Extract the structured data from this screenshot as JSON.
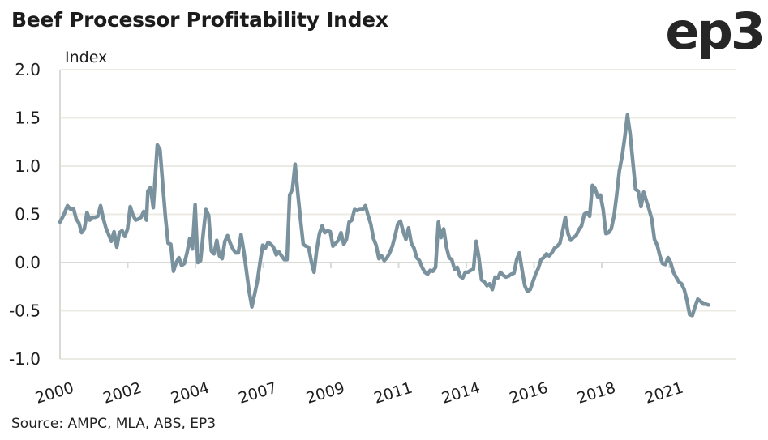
{
  "header": {
    "title": "Beef Processor Profitability Index",
    "logo": "ep3"
  },
  "footer": {
    "source": "Source: AMPC, MLA, ABS, EP3"
  },
  "colors": {
    "line": "#7a919e",
    "grid": "#ecebe3",
    "axis": "#d9d9d6"
  },
  "chart_data": {
    "type": "line",
    "title": "Beef Processor Profitability Index",
    "ylabel": "Index",
    "xlabel": "",
    "ylim": [
      -1.0,
      2.0
    ],
    "yticks": [
      "2.0",
      "1.5",
      "1.0",
      "0.5",
      "0.0",
      "-0.5",
      "-1.0"
    ],
    "ytick_values": [
      2.0,
      1.5,
      1.0,
      0.5,
      0.0,
      -0.5,
      -1.0
    ],
    "xtick_labels": [
      "2000",
      "2002",
      "2004",
      "2007",
      "2009",
      "2011",
      "2014",
      "2016",
      "2018",
      "2021"
    ],
    "grid": "horizontal",
    "legend": "none",
    "series": [
      {
        "name": "Beef Processor Profitability Index",
        "x_fraction": [
          0.0,
          0.006,
          0.011,
          0.016,
          0.02,
          0.024,
          0.028,
          0.032,
          0.036,
          0.04,
          0.044,
          0.048,
          0.052,
          0.056,
          0.06,
          0.064,
          0.068,
          0.072,
          0.076,
          0.08,
          0.084,
          0.088,
          0.092,
          0.096,
          0.1,
          0.104,
          0.108,
          0.112,
          0.116,
          0.12,
          0.124,
          0.128,
          0.13,
          0.134,
          0.138,
          0.14,
          0.144,
          0.148,
          0.152,
          0.156,
          0.16,
          0.164,
          0.168,
          0.172,
          0.176,
          0.18,
          0.184,
          0.188,
          0.192,
          0.196,
          0.2,
          0.204,
          0.208,
          0.212,
          0.216,
          0.22,
          0.224,
          0.228,
          0.232,
          0.236,
          0.24,
          0.244,
          0.248,
          0.252,
          0.256,
          0.26,
          0.264,
          0.268,
          0.272,
          0.276,
          0.28,
          0.284,
          0.288,
          0.292,
          0.296,
          0.3,
          0.304,
          0.308,
          0.312,
          0.316,
          0.32,
          0.324,
          0.328,
          0.332,
          0.336,
          0.34,
          0.344,
          0.348,
          0.352,
          0.356,
          0.36,
          0.364,
          0.368,
          0.372,
          0.376,
          0.38,
          0.384,
          0.388,
          0.392,
          0.396,
          0.4,
          0.404,
          0.408,
          0.412,
          0.416,
          0.42,
          0.424,
          0.428,
          0.432,
          0.436,
          0.44,
          0.444,
          0.448,
          0.452,
          0.456,
          0.46,
          0.464,
          0.468,
          0.472,
          0.476,
          0.48,
          0.484,
          0.488,
          0.492,
          0.496,
          0.5,
          0.504,
          0.508,
          0.512,
          0.516,
          0.52,
          0.524,
          0.528,
          0.532,
          0.536,
          0.54,
          0.544,
          0.548,
          0.552,
          0.556,
          0.56,
          0.564,
          0.568,
          0.572,
          0.576,
          0.58,
          0.584,
          0.588,
          0.592,
          0.596,
          0.6,
          0.604,
          0.608,
          0.612,
          0.616,
          0.62,
          0.624,
          0.628,
          0.632,
          0.636,
          0.64,
          0.644,
          0.648,
          0.652,
          0.656,
          0.66,
          0.664,
          0.668,
          0.672,
          0.676,
          0.68,
          0.684,
          0.688,
          0.692,
          0.696,
          0.7,
          0.704,
          0.708,
          0.712,
          0.716,
          0.72,
          0.724,
          0.728,
          0.732,
          0.736,
          0.74,
          0.744,
          0.748,
          0.752,
          0.756,
          0.76,
          0.764,
          0.768,
          0.772,
          0.776,
          0.78,
          0.784,
          0.788,
          0.792,
          0.796,
          0.8,
          0.804,
          0.808,
          0.812,
          0.816,
          0.82,
          0.824,
          0.828,
          0.832,
          0.836,
          0.84,
          0.844,
          0.848,
          0.852,
          0.856,
          0.86,
          0.864,
          0.868,
          0.872,
          0.876,
          0.88,
          0.884,
          0.888,
          0.892,
          0.896,
          0.9,
          0.904,
          0.908,
          0.912,
          0.916,
          0.92,
          0.924,
          0.928,
          0.932,
          0.936,
          0.94,
          0.944,
          0.948,
          0.952,
          0.956,
          0.96,
          0.964,
          0.968,
          0.972,
          0.976,
          0.98,
          0.984,
          0.988,
          0.992,
          0.996,
          1.0
        ],
        "values": [
          0.42,
          0.5,
          0.59,
          0.55,
          0.56,
          0.45,
          0.41,
          0.31,
          0.35,
          0.52,
          0.44,
          0.47,
          0.47,
          0.48,
          0.59,
          0.46,
          0.36,
          0.29,
          0.22,
          0.32,
          0.16,
          0.31,
          0.33,
          0.27,
          0.35,
          0.58,
          0.49,
          0.44,
          0.45,
          0.47,
          0.53,
          0.44,
          0.74,
          0.78,
          0.57,
          0.78,
          1.22,
          1.17,
          0.82,
          0.48,
          0.2,
          0.19,
          -0.09,
          0.0,
          0.05,
          -0.03,
          -0.01,
          0.1,
          0.25,
          0.14,
          0.6,
          0.0,
          0.02,
          0.3,
          0.55,
          0.49,
          0.12,
          0.09,
          0.23,
          0.07,
          0.04,
          0.22,
          0.28,
          0.2,
          0.14,
          0.1,
          0.1,
          0.29,
          0.12,
          -0.09,
          -0.3,
          -0.46,
          -0.33,
          -0.2,
          0.0,
          0.18,
          0.15,
          0.21,
          0.19,
          0.16,
          0.08,
          0.11,
          0.07,
          0.03,
          0.03,
          0.7,
          0.76,
          1.02,
          0.72,
          0.45,
          0.19,
          0.17,
          0.16,
          0.01,
          -0.1,
          0.13,
          0.3,
          0.38,
          0.31,
          0.33,
          0.32,
          0.17,
          0.2,
          0.23,
          0.31,
          0.19,
          0.24,
          0.42,
          0.44,
          0.55,
          0.54,
          0.55,
          0.55,
          0.59,
          0.49,
          0.4,
          0.25,
          0.18,
          0.04,
          0.07,
          0.02,
          0.05,
          0.1,
          0.17,
          0.28,
          0.4,
          0.43,
          0.32,
          0.24,
          0.36,
          0.2,
          0.15,
          0.05,
          0.02,
          -0.05,
          -0.1,
          -0.12,
          -0.08,
          -0.09,
          -0.05,
          0.42,
          0.26,
          0.35,
          0.16,
          0.05,
          0.03,
          -0.07,
          -0.05,
          -0.14,
          -0.16,
          -0.1,
          -0.1,
          -0.08,
          -0.07,
          0.22,
          0.05,
          -0.18,
          -0.2,
          -0.24,
          -0.22,
          -0.28,
          -0.15,
          -0.16,
          -0.1,
          -0.13,
          -0.15,
          -0.14,
          -0.12,
          -0.11,
          0.03,
          0.1,
          -0.08,
          -0.24,
          -0.3,
          -0.28,
          -0.2,
          -0.12,
          -0.06,
          0.03,
          0.05,
          0.09,
          0.07,
          0.1,
          0.15,
          0.17,
          0.2,
          0.33,
          0.47,
          0.3,
          0.23,
          0.26,
          0.28,
          0.34,
          0.38,
          0.5,
          0.52,
          0.48,
          0.8,
          0.77,
          0.68,
          0.7,
          0.55,
          0.3,
          0.31,
          0.35,
          0.48,
          0.7,
          0.95,
          1.1,
          1.3,
          1.53,
          1.33,
          1.04,
          0.76,
          0.74,
          0.58,
          0.73,
          0.64,
          0.55,
          0.45,
          0.24,
          0.18,
          0.07,
          -0.01,
          -0.02,
          0.05,
          0.0,
          -0.1,
          -0.15,
          -0.2,
          -0.22,
          -0.28,
          -0.39,
          -0.54,
          -0.55,
          -0.46,
          -0.38,
          -0.4,
          -0.43,
          -0.43,
          -0.44
        ]
      }
    ]
  }
}
